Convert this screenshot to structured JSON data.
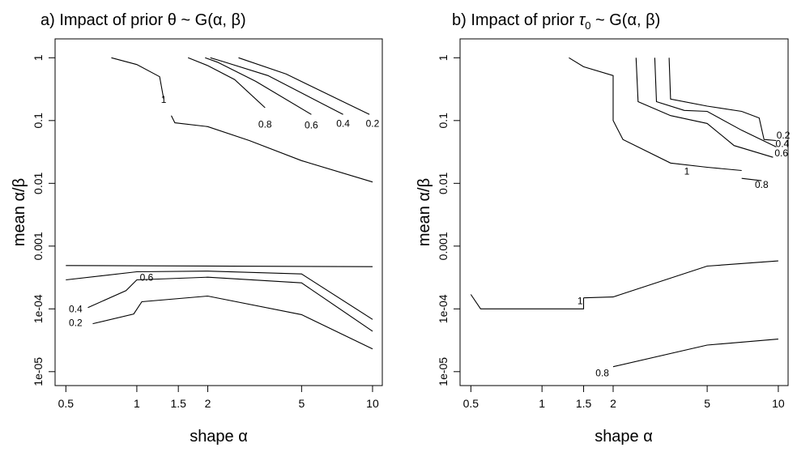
{
  "chart_data": [
    {
      "type": "contour",
      "title": "a) Impact of prior θ ~ G(α, β)",
      "xlabel": "shape α",
      "ylabel": "mean α/β",
      "x_scale": "log",
      "y_scale": "log",
      "xlim": [
        0.45,
        11
      ],
      "ylim": [
        6e-06,
        2
      ],
      "x_ticks": [
        {
          "value": 0.5,
          "label": "0.5"
        },
        {
          "value": 1,
          "label": "1"
        },
        {
          "value": 1.5,
          "label": "1.5"
        },
        {
          "value": 2,
          "label": "2"
        },
        {
          "value": 5,
          "label": "5"
        },
        {
          "value": 10,
          "label": "10"
        }
      ],
      "y_ticks": [
        {
          "value": 1,
          "label": "1"
        },
        {
          "value": 0.1,
          "label": "0.1"
        },
        {
          "value": 0.01,
          "label": "0.01"
        },
        {
          "value": 0.001,
          "label": "0.001"
        },
        {
          "value": 0.0001,
          "label": "1e-04"
        },
        {
          "value": 1e-05,
          "label": "1e-05"
        }
      ],
      "contours": [
        {
          "level": "1",
          "label": {
            "x": 1.3,
            "y": 0.19
          },
          "points": [
            [
              0.78,
              1.0
            ],
            [
              1.0,
              0.78
            ],
            [
              1.25,
              0.5
            ],
            [
              1.3,
              0.22
            ]
          ]
        },
        {
          "level": "",
          "points": [
            [
              1.4,
              0.12
            ],
            [
              1.45,
              0.092
            ],
            [
              2.0,
              0.08
            ],
            [
              3.0,
              0.048
            ],
            [
              5.0,
              0.023
            ],
            [
              10.0,
              0.0105
            ]
          ]
        },
        {
          "level": "0.8",
          "label": {
            "x": 3.5,
            "y": 0.077
          },
          "points": [
            [
              1.65,
              1.0
            ],
            [
              2.0,
              0.75
            ],
            [
              2.6,
              0.45
            ],
            [
              3.5,
              0.16
            ]
          ]
        },
        {
          "level": "0.6",
          "label": {
            "x": 5.5,
            "y": 0.075
          },
          "points": [
            [
              1.95,
              1.0
            ],
            [
              2.2,
              0.85
            ],
            [
              3.2,
              0.42
            ],
            [
              5.5,
              0.125
            ]
          ]
        },
        {
          "level": "0.4",
          "label": {
            "x": 7.5,
            "y": 0.08
          },
          "points": [
            [
              2.05,
              1.0
            ],
            [
              2.3,
              0.88
            ],
            [
              3.6,
              0.52
            ],
            [
              7.5,
              0.125
            ]
          ]
        },
        {
          "level": "0.2",
          "label": {
            "x": 10.0,
            "y": 0.08
          },
          "points": [
            [
              2.7,
              1.0
            ],
            [
              4.3,
              0.55
            ],
            [
              9.7,
              0.125
            ]
          ]
        },
        {
          "level": "",
          "points": [
            [
              0.5,
              0.00049
            ],
            [
              10.0,
              0.00047
            ]
          ]
        },
        {
          "level": "0.6",
          "label": {
            "x": 1.1,
            "y": 0.00028
          },
          "points": [
            [
              0.5,
              0.00029
            ],
            [
              1.0,
              0.00039
            ],
            [
              2.0,
              0.0004
            ],
            [
              5.0,
              0.00036
            ],
            [
              10.0,
              6.8e-05
            ]
          ]
        },
        {
          "level": "0.4",
          "label": {
            "x": 0.55,
            "y": 8.8e-05
          },
          "points": [
            [
              0.62,
              0.000105
            ],
            [
              0.9,
              0.000195
            ],
            [
              1.0,
              0.00029
            ],
            [
              2.0,
              0.00032
            ],
            [
              5.0,
              0.00026
            ],
            [
              10.0,
              4.4e-05
            ]
          ]
        },
        {
          "level": "0.2",
          "label": {
            "x": 0.55,
            "y": 5.3e-05
          },
          "points": [
            [
              0.65,
              5.8e-05
            ],
            [
              0.97,
              8.3e-05
            ],
            [
              1.05,
              0.00013
            ],
            [
              2.0,
              0.00016
            ],
            [
              5.0,
              8.1e-05
            ],
            [
              10.0,
              2.3e-05
            ]
          ]
        }
      ]
    },
    {
      "type": "contour",
      "title": "b) Impact of prior τ0 ~ G(α, β)",
      "title_prefix": "b) Impact of prior ",
      "title_symbol": "τ",
      "title_subscript": "0",
      "title_suffix": " ~ G(α, β)",
      "xlabel": "shape α",
      "ylabel": "mean α/β",
      "x_scale": "log",
      "y_scale": "log",
      "xlim": [
        0.45,
        11
      ],
      "ylim": [
        6e-06,
        2
      ],
      "x_ticks": [
        {
          "value": 0.5,
          "label": "0.5"
        },
        {
          "value": 1,
          "label": "1"
        },
        {
          "value": 1.5,
          "label": "1.5"
        },
        {
          "value": 2,
          "label": "2"
        },
        {
          "value": 5,
          "label": "5"
        },
        {
          "value": 10,
          "label": "10"
        }
      ],
      "y_ticks": [
        {
          "value": 1,
          "label": "1"
        },
        {
          "value": 0.1,
          "label": "0.1"
        },
        {
          "value": 0.01,
          "label": "0.01"
        },
        {
          "value": 0.001,
          "label": "0.001"
        },
        {
          "value": 0.0001,
          "label": "1e-04"
        },
        {
          "value": 1e-05,
          "label": "1e-05"
        }
      ],
      "contours": [
        {
          "level": "1",
          "label": {
            "x": 4.1,
            "y": 0.0138
          },
          "points": [
            [
              1.3,
              1.0
            ],
            [
              1.5,
              0.72
            ],
            [
              2.0,
              0.52
            ],
            [
              2.0,
              0.1
            ],
            [
              2.2,
              0.05
            ],
            [
              3.5,
              0.021
            ],
            [
              5.0,
              0.018
            ],
            [
              7.0,
              0.016
            ]
          ]
        },
        {
          "level": "0.8",
          "label": {
            "x": 8.5,
            "y": 0.0085
          },
          "points": [
            [
              7.0,
              0.012
            ],
            [
              8.5,
              0.011
            ]
          ]
        },
        {
          "level": "0.6",
          "label": {
            "x": 10.3,
            "y": 0.027
          },
          "points": [
            [
              2.5,
              1.0
            ],
            [
              2.55,
              0.2
            ],
            [
              3.5,
              0.12
            ],
            [
              5.0,
              0.09
            ],
            [
              6.5,
              0.04
            ],
            [
              9.5,
              0.026
            ]
          ]
        },
        {
          "level": "0.4",
          "label": {
            "x": 10.4,
            "y": 0.038
          },
          "points": [
            [
              3.0,
              1.0
            ],
            [
              3.05,
              0.2
            ],
            [
              4.0,
              0.145
            ],
            [
              5.0,
              0.14
            ],
            [
              7.0,
              0.07
            ],
            [
              9.8,
              0.038
            ]
          ]
        },
        {
          "level": "0.2",
          "label": {
            "x": 10.5,
            "y": 0.052
          },
          "points": [
            [
              3.45,
              1.0
            ],
            [
              3.5,
              0.22
            ],
            [
              5.0,
              0.17
            ],
            [
              7.0,
              0.14
            ],
            [
              8.3,
              0.11
            ],
            [
              8.7,
              0.05
            ],
            [
              9.8,
              0.048
            ]
          ]
        },
        {
          "level": "",
          "points": [
            [
              0.5,
              0.00017
            ],
            [
              0.55,
              0.0001
            ],
            [
              1.5,
              0.0001
            ],
            [
              1.5,
              0.00015
            ]
          ]
        },
        {
          "level": "1",
          "label": {
            "x": 1.45,
            "y": 0.000118
          },
          "points": [
            [
              1.5,
              0.00015
            ],
            [
              2.0,
              0.000155
            ],
            [
              5.0,
              0.00048
            ],
            [
              10.0,
              0.00058
            ]
          ]
        },
        {
          "level": "0.8",
          "label": {
            "x": 1.8,
            "y": 8.5e-06
          },
          "points": [
            [
              2.0,
              1.2e-05
            ],
            [
              5.0,
              2.65e-05
            ],
            [
              10.0,
              3.3e-05
            ]
          ]
        }
      ]
    }
  ]
}
